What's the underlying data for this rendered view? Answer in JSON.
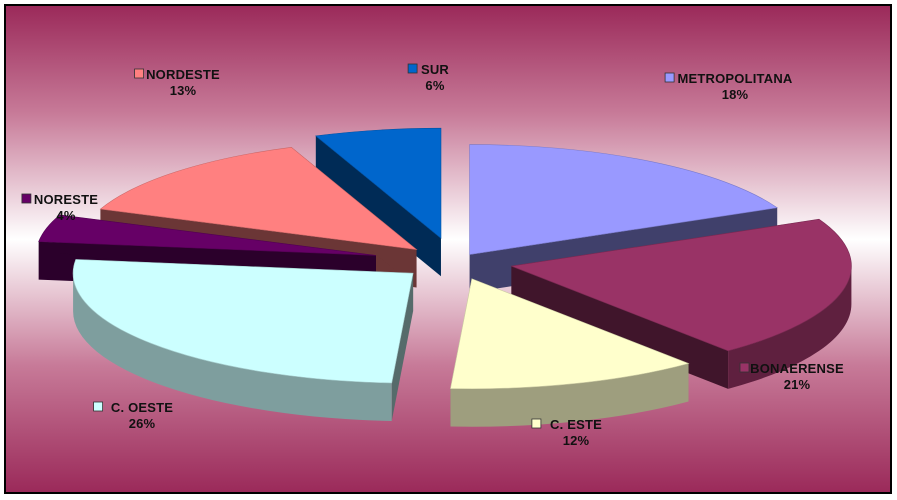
{
  "chart_data": {
    "type": "pie",
    "style": "exploded-3d",
    "categories": [
      "METROPOLITANA",
      "BONAERENSE",
      "C. ESTE",
      "C. OESTE",
      "NORESTE",
      "NORDESTE",
      "SUR"
    ],
    "values": [
      18,
      21,
      12,
      26,
      4,
      13,
      6
    ],
    "percent_labels": [
      "18%",
      "21%",
      "12%",
      "26%",
      "4%",
      "13%",
      "6%"
    ],
    "colors": [
      "#9999FF",
      "#993366",
      "#FFFFCC",
      "#CCFFFF",
      "#660066",
      "#FF8080",
      "#0066CC"
    ],
    "title": "",
    "legend": "none",
    "background": "maroon-gradient"
  }
}
